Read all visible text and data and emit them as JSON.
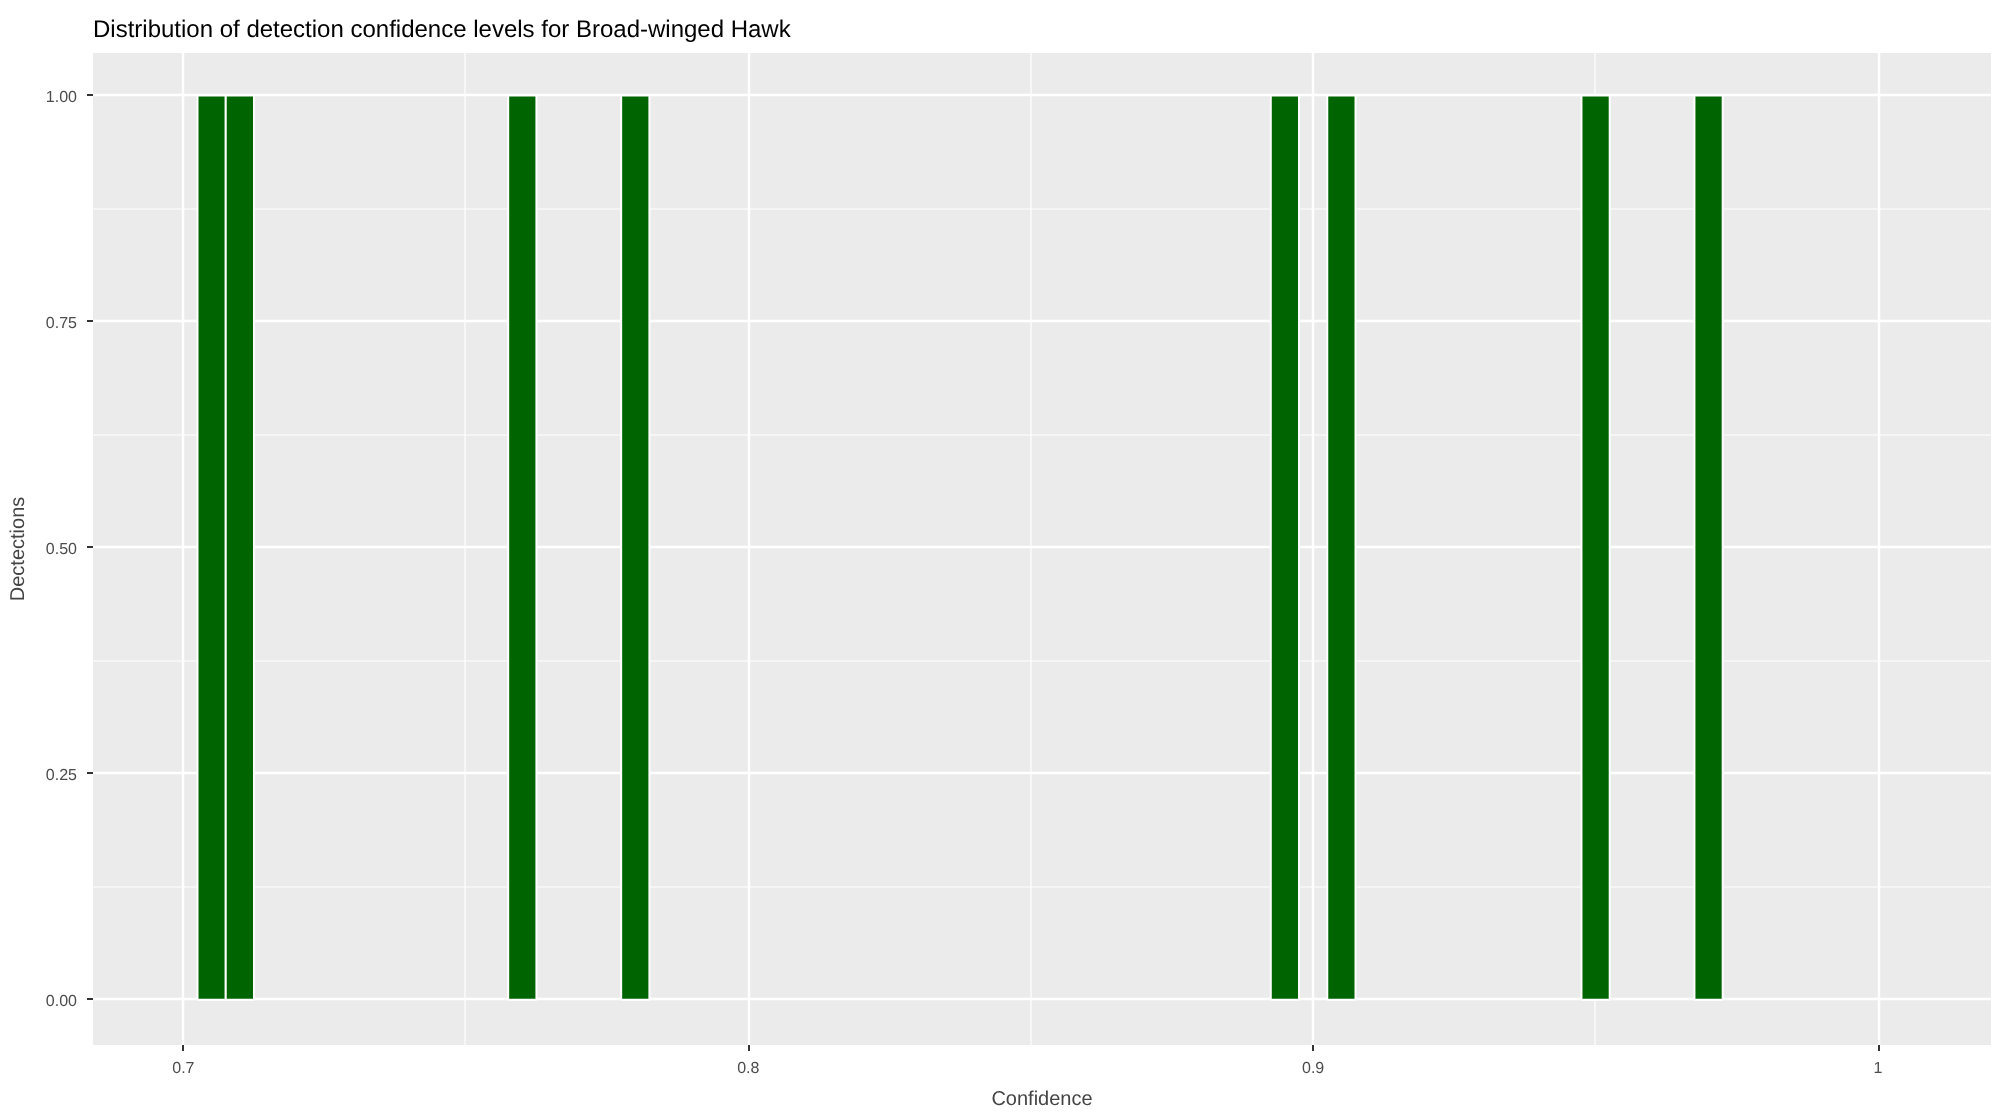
{
  "chart_data": {
    "type": "histogram",
    "title": "Distribution of detection confidence levels for Broad-winged Hawk",
    "xlabel": "Confidence",
    "ylabel": "Dectections",
    "bins": [
      0.7025,
      0.7075,
      0.7125,
      0.7175,
      0.7225,
      0.7275,
      0.7325,
      0.7375,
      0.7425,
      0.7475,
      0.7525,
      0.7575,
      0.7625,
      0.7675,
      0.7725,
      0.7775,
      0.7825,
      0.7875,
      0.7925,
      0.7975,
      0.8025,
      0.8075,
      0.8125,
      0.8175,
      0.8225,
      0.8275,
      0.8325,
      0.8375,
      0.8425,
      0.8475,
      0.8525,
      0.8575,
      0.8625,
      0.8675,
      0.8725,
      0.8775,
      0.8825,
      0.8875,
      0.8925,
      0.8975,
      0.9025,
      0.9075,
      0.9125,
      0.9175,
      0.9225,
      0.9275,
      0.9325,
      0.9375,
      0.9425,
      0.9475,
      0.9525,
      0.9575,
      0.9625,
      0.9675,
      0.9725
    ],
    "values": [
      1,
      1,
      0,
      0,
      0,
      0,
      0,
      0,
      0,
      0,
      0,
      1,
      0,
      0,
      0,
      1,
      0,
      0,
      0,
      0,
      0,
      0,
      0,
      0,
      0,
      0,
      0,
      0,
      0,
      0,
      0,
      0,
      0,
      0,
      0,
      0,
      0,
      0,
      1,
      0,
      1,
      0,
      0,
      0,
      0,
      0,
      0,
      0,
      0,
      1,
      0,
      0,
      0,
      1
    ],
    "color": "#006400",
    "xlim": [
      0.684,
      1.02
    ],
    "ylim": [
      -0.05,
      1.047
    ],
    "xticks": [
      0.7,
      0.8,
      0.9,
      1.0
    ],
    "yticks": [
      {
        "value": 0,
        "label": "0.00"
      },
      {
        "value": 0.25,
        "label": "0.25"
      },
      {
        "value": 0.5,
        "label": "0.50"
      },
      {
        "value": 0.75,
        "label": "0.75"
      },
      {
        "value": 1,
        "label": "1.00"
      }
    ],
    "grid": true
  }
}
